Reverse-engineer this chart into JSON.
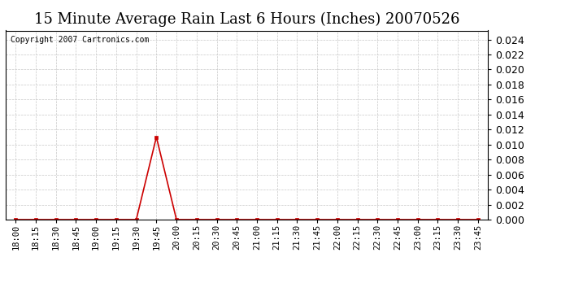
{
  "title": "15 Minute Average Rain Last 6 Hours (Inches) 20070526",
  "copyright": "Copyright 2007 Cartronics.com",
  "x_labels": [
    "18:00",
    "18:15",
    "18:30",
    "18:45",
    "19:00",
    "19:15",
    "19:30",
    "19:45",
    "20:00",
    "20:15",
    "20:30",
    "20:45",
    "21:00",
    "21:15",
    "21:30",
    "21:45",
    "22:00",
    "22:15",
    "22:30",
    "22:45",
    "23:00",
    "23:15",
    "23:30",
    "23:45"
  ],
  "y_values": [
    0.0,
    0.0,
    0.0,
    0.0,
    0.0,
    0.0,
    0.0,
    0.011,
    0.0,
    0.0,
    0.0,
    0.0,
    0.0,
    0.0,
    0.0,
    0.0,
    0.0,
    0.0,
    0.0,
    0.0,
    0.0,
    0.0,
    0.0,
    0.0
  ],
  "line_color": "#cc0000",
  "marker": "s",
  "marker_size": 2.5,
  "background_color": "#ffffff",
  "plot_bg_color": "#ffffff",
  "grid_color": "#c8c8c8",
  "ylim": [
    0.0,
    0.0252
  ],
  "yticks": [
    0.0,
    0.002,
    0.004,
    0.006,
    0.008,
    0.01,
    0.012,
    0.014,
    0.016,
    0.018,
    0.02,
    0.022,
    0.024
  ],
  "title_fontsize": 13,
  "copyright_fontsize": 7,
  "tick_fontsize": 7.5,
  "ytick_fontsize": 9,
  "linewidth": 1.2
}
